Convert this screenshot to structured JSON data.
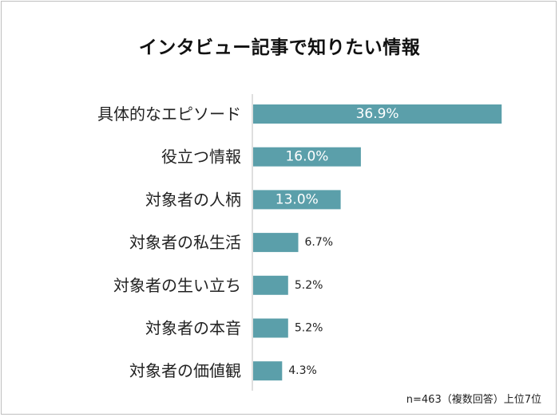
{
  "chart_data": {
    "type": "bar",
    "orientation": "horizontal",
    "title": "インタビュー記事で知りたい情報",
    "categories": [
      "具体的なエピソード",
      "役立つ情報",
      "対象者の人柄",
      "対象者の私生活",
      "対象者の生い立ち",
      "対象者の本音",
      "対象者の価値観"
    ],
    "values": [
      36.9,
      16.0,
      13.0,
      6.7,
      5.2,
      5.2,
      4.3
    ],
    "value_labels": [
      "36.9%",
      "16.0%",
      "13.0%",
      "6.7%",
      "5.2%",
      "5.2%",
      "4.3%"
    ],
    "unit": "%",
    "xlim": [
      0,
      37
    ],
    "grid": false,
    "legend": "none",
    "bar_color": "#5b9faa",
    "note": "n=463（複数回答）上位7位"
  }
}
